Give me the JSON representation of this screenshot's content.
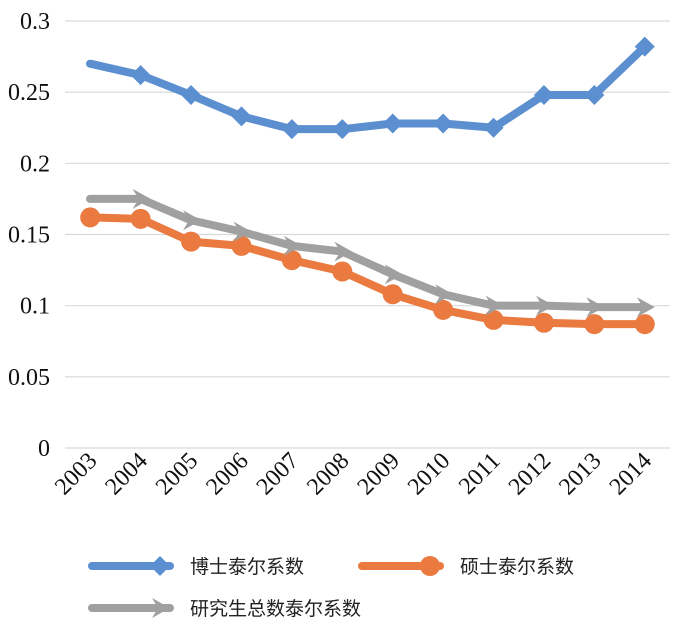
{
  "chart_data": {
    "type": "line",
    "title": "",
    "xlabel": "",
    "ylabel": "",
    "categories": [
      "2003",
      "2004",
      "2005",
      "2006",
      "2007",
      "2008",
      "2009",
      "2010",
      "2011",
      "2012",
      "2013",
      "2014"
    ],
    "ylim": [
      0,
      0.3
    ],
    "yticks": [
      0,
      0.05,
      0.1,
      0.15,
      0.2,
      0.25,
      0.3
    ],
    "ytick_labels": [
      "0",
      "0.05",
      "0.1",
      "0.15",
      "0.2",
      "0.25",
      "0.3"
    ],
    "grid": true,
    "legend_position": "bottom",
    "series": [
      {
        "name": "博士泰尔系数",
        "color": "#5b8fd0",
        "marker": "diamond",
        "values": [
          0.27,
          0.262,
          0.248,
          0.233,
          0.224,
          0.224,
          0.228,
          0.228,
          0.225,
          0.248,
          0.248,
          0.282
        ]
      },
      {
        "name": "硕士泰尔系数",
        "color": "#ea7a3f",
        "marker": "circle",
        "values": [
          0.162,
          0.161,
          0.145,
          0.142,
          0.132,
          0.124,
          0.108,
          0.097,
          0.09,
          0.088,
          0.087,
          0.087
        ]
      },
      {
        "name": "研究生总数泰尔系数",
        "color": "#a0a0a0",
        "marker": "arrow",
        "values": [
          0.175,
          0.175,
          0.16,
          0.152,
          0.142,
          0.138,
          0.122,
          0.108,
          0.1,
          0.1,
          0.099,
          0.099
        ]
      }
    ]
  }
}
